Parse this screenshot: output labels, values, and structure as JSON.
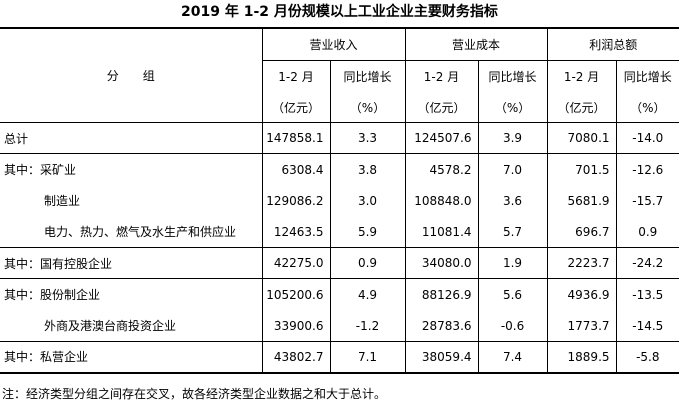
{
  "title": "2019 年 1-2 月份规模以上工业企业主要财务指标",
  "header": {
    "group_label": "分　　组",
    "groups": [
      "营业收入",
      "营业成本",
      "利润总额"
    ],
    "sub_cols": [
      "1-2 月",
      "同比增长"
    ],
    "units": [
      "（亿元）",
      "（%）"
    ]
  },
  "rows": [
    {
      "label": "总计",
      "rev": "147858.1",
      "rev_g": "3.3",
      "cost": "124507.6",
      "cost_g": "3.9",
      "profit": "7080.1",
      "profit_g": "-14.0"
    },
    {
      "label": "其中：采矿业",
      "rev": "6308.4",
      "rev_g": "3.8",
      "cost": "4578.2",
      "cost_g": "7.0",
      "profit": "701.5",
      "profit_g": "-12.6"
    },
    {
      "label": "制造业",
      "rev": "129086.2",
      "rev_g": "3.0",
      "cost": "108848.0",
      "cost_g": "3.6",
      "profit": "5681.9",
      "profit_g": "-15.7"
    },
    {
      "label": "电力、热力、燃气及水生产和供应业",
      "rev": "12463.5",
      "rev_g": "5.9",
      "cost": "11081.4",
      "cost_g": "5.7",
      "profit": "696.7",
      "profit_g": "0.9"
    },
    {
      "label": "其中：国有控股企业",
      "rev": "42275.0",
      "rev_g": "0.9",
      "cost": "34080.0",
      "cost_g": "1.9",
      "profit": "2223.7",
      "profit_g": "-24.2"
    },
    {
      "label": "其中：股份制企业",
      "rev": "105200.6",
      "rev_g": "4.9",
      "cost": "88126.9",
      "cost_g": "5.6",
      "profit": "4936.9",
      "profit_g": "-13.5"
    },
    {
      "label": "外商及港澳台商投资企业",
      "rev": "33900.6",
      "rev_g": "-1.2",
      "cost": "28783.6",
      "cost_g": "-0.6",
      "profit": "1773.7",
      "profit_g": "-14.5"
    },
    {
      "label": "其中：私营企业",
      "rev": "43802.7",
      "rev_g": "7.1",
      "cost": "38059.4",
      "cost_g": "7.4",
      "profit": "1889.5",
      "profit_g": "-5.8"
    }
  ],
  "note": "注：经济类型分组之间存在交叉，故各经济类型企业数据之和大于总计。"
}
